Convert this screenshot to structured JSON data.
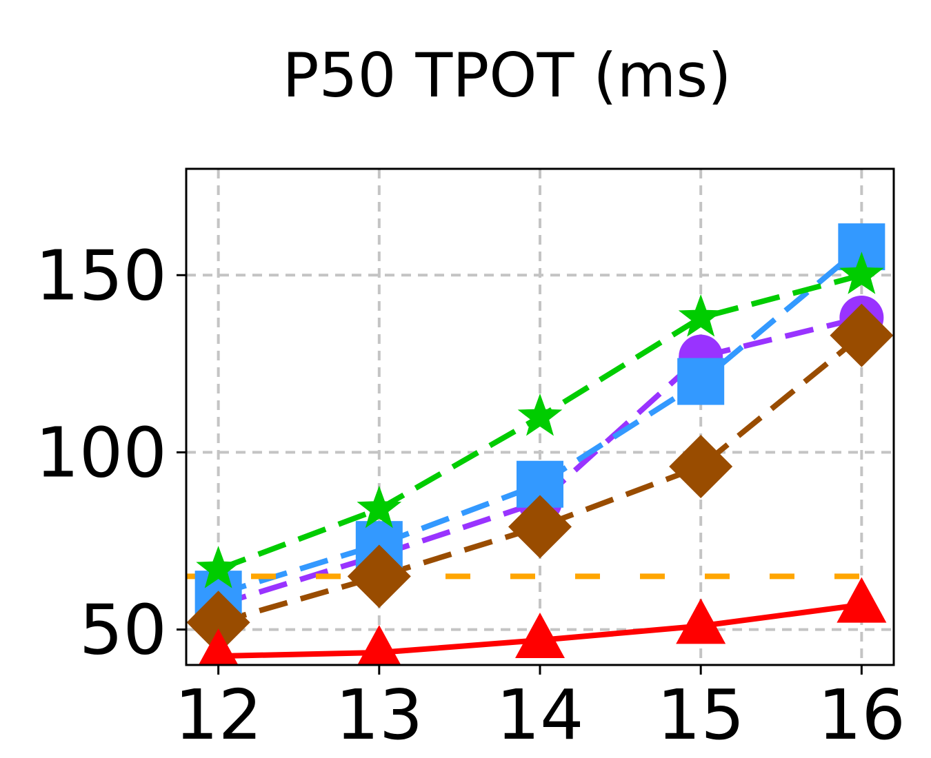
{
  "chart_data": {
    "type": "line",
    "title": "P50 TPOT (ms)",
    "xlabel": "",
    "ylabel": "",
    "x": [
      12,
      13,
      14,
      15,
      16
    ],
    "xlim": [
      11.8,
      16.2
    ],
    "ylim": [
      40,
      180
    ],
    "xticks": [
      "12",
      "13",
      "14",
      "15",
      "16"
    ],
    "yticks": [
      50,
      100,
      150
    ],
    "grid": true,
    "series": [
      {
        "color": "#9933ff",
        "line": "dashed",
        "marker": "circle",
        "values": [
          57,
          71,
          86,
          127,
          138
        ]
      },
      {
        "color": "#3399ff",
        "line": "dashed",
        "marker": "square",
        "values": [
          60,
          74,
          91,
          120,
          158
        ]
      },
      {
        "color": "#00cc00",
        "line": "dashed",
        "marker": "star",
        "values": [
          67,
          84,
          110,
          138,
          150
        ]
      },
      {
        "color": "#994c00",
        "line": "dashed",
        "marker": "diamond",
        "values": [
          52,
          65,
          79,
          96,
          133
        ]
      },
      {
        "color": "#ff0000",
        "line": "solid",
        "marker": "triangle",
        "values": [
          42.5,
          43.5,
          47,
          51,
          57
        ]
      },
      {
        "color": "#ffa500",
        "line": "dashed",
        "marker": "none",
        "values": [
          65,
          65,
          65,
          65,
          65
        ]
      }
    ]
  }
}
